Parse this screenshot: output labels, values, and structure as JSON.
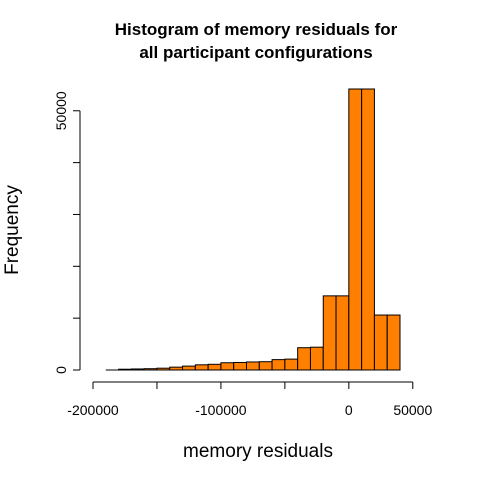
{
  "chart_data": {
    "type": "histogram",
    "title_lines": [
      "Histogram of memory residuals for",
      "all participant configurations"
    ],
    "xlabel": "memory residuals",
    "ylabel": "Frequency",
    "bar_color": "#ff7f00",
    "bin_width": 10000,
    "bins": [
      {
        "start": -190000,
        "end": -180000,
        "count": 0
      },
      {
        "start": -180000,
        "end": -170000,
        "count": 150
      },
      {
        "start": -170000,
        "end": -160000,
        "count": 200
      },
      {
        "start": -160000,
        "end": -150000,
        "count": 250
      },
      {
        "start": -150000,
        "end": -140000,
        "count": 350
      },
      {
        "start": -140000,
        "end": -130000,
        "count": 550
      },
      {
        "start": -130000,
        "end": -120000,
        "count": 750
      },
      {
        "start": -120000,
        "end": -110000,
        "count": 1000
      },
      {
        "start": -110000,
        "end": -100000,
        "count": 1100
      },
      {
        "start": -100000,
        "end": -90000,
        "count": 1400
      },
      {
        "start": -90000,
        "end": -80000,
        "count": 1450
      },
      {
        "start": -80000,
        "end": -70000,
        "count": 1550
      },
      {
        "start": -70000,
        "end": -60000,
        "count": 1600
      },
      {
        "start": -60000,
        "end": -50000,
        "count": 2000
      },
      {
        "start": -50000,
        "end": -40000,
        "count": 2100
      },
      {
        "start": -40000,
        "end": -30000,
        "count": 4300
      },
      {
        "start": -30000,
        "end": -20000,
        "count": 4400
      },
      {
        "start": -20000,
        "end": -10000,
        "count": 14300
      },
      {
        "start": -10000,
        "end": 0,
        "count": 14300
      },
      {
        "start": 0,
        "end": 10000,
        "count": 54200
      },
      {
        "start": 10000,
        "end": 20000,
        "count": 54200
      },
      {
        "start": 20000,
        "end": 30000,
        "count": 10600
      },
      {
        "start": 30000,
        "end": 40000,
        "count": 10600
      }
    ],
    "x_axis": {
      "range": [
        -190000,
        50000
      ],
      "ticks": [
        -200000,
        -150000,
        -100000,
        -50000,
        0,
        50000
      ],
      "tick_labels": [
        "-200000",
        "",
        "-100000",
        "",
        "0",
        "50000"
      ]
    },
    "y_axis": {
      "range": [
        0,
        55000
      ],
      "ticks": [
        0,
        10000,
        20000,
        30000,
        40000,
        50000
      ],
      "tick_labels": [
        "0",
        "",
        "",
        "",
        "",
        "50000"
      ]
    }
  }
}
